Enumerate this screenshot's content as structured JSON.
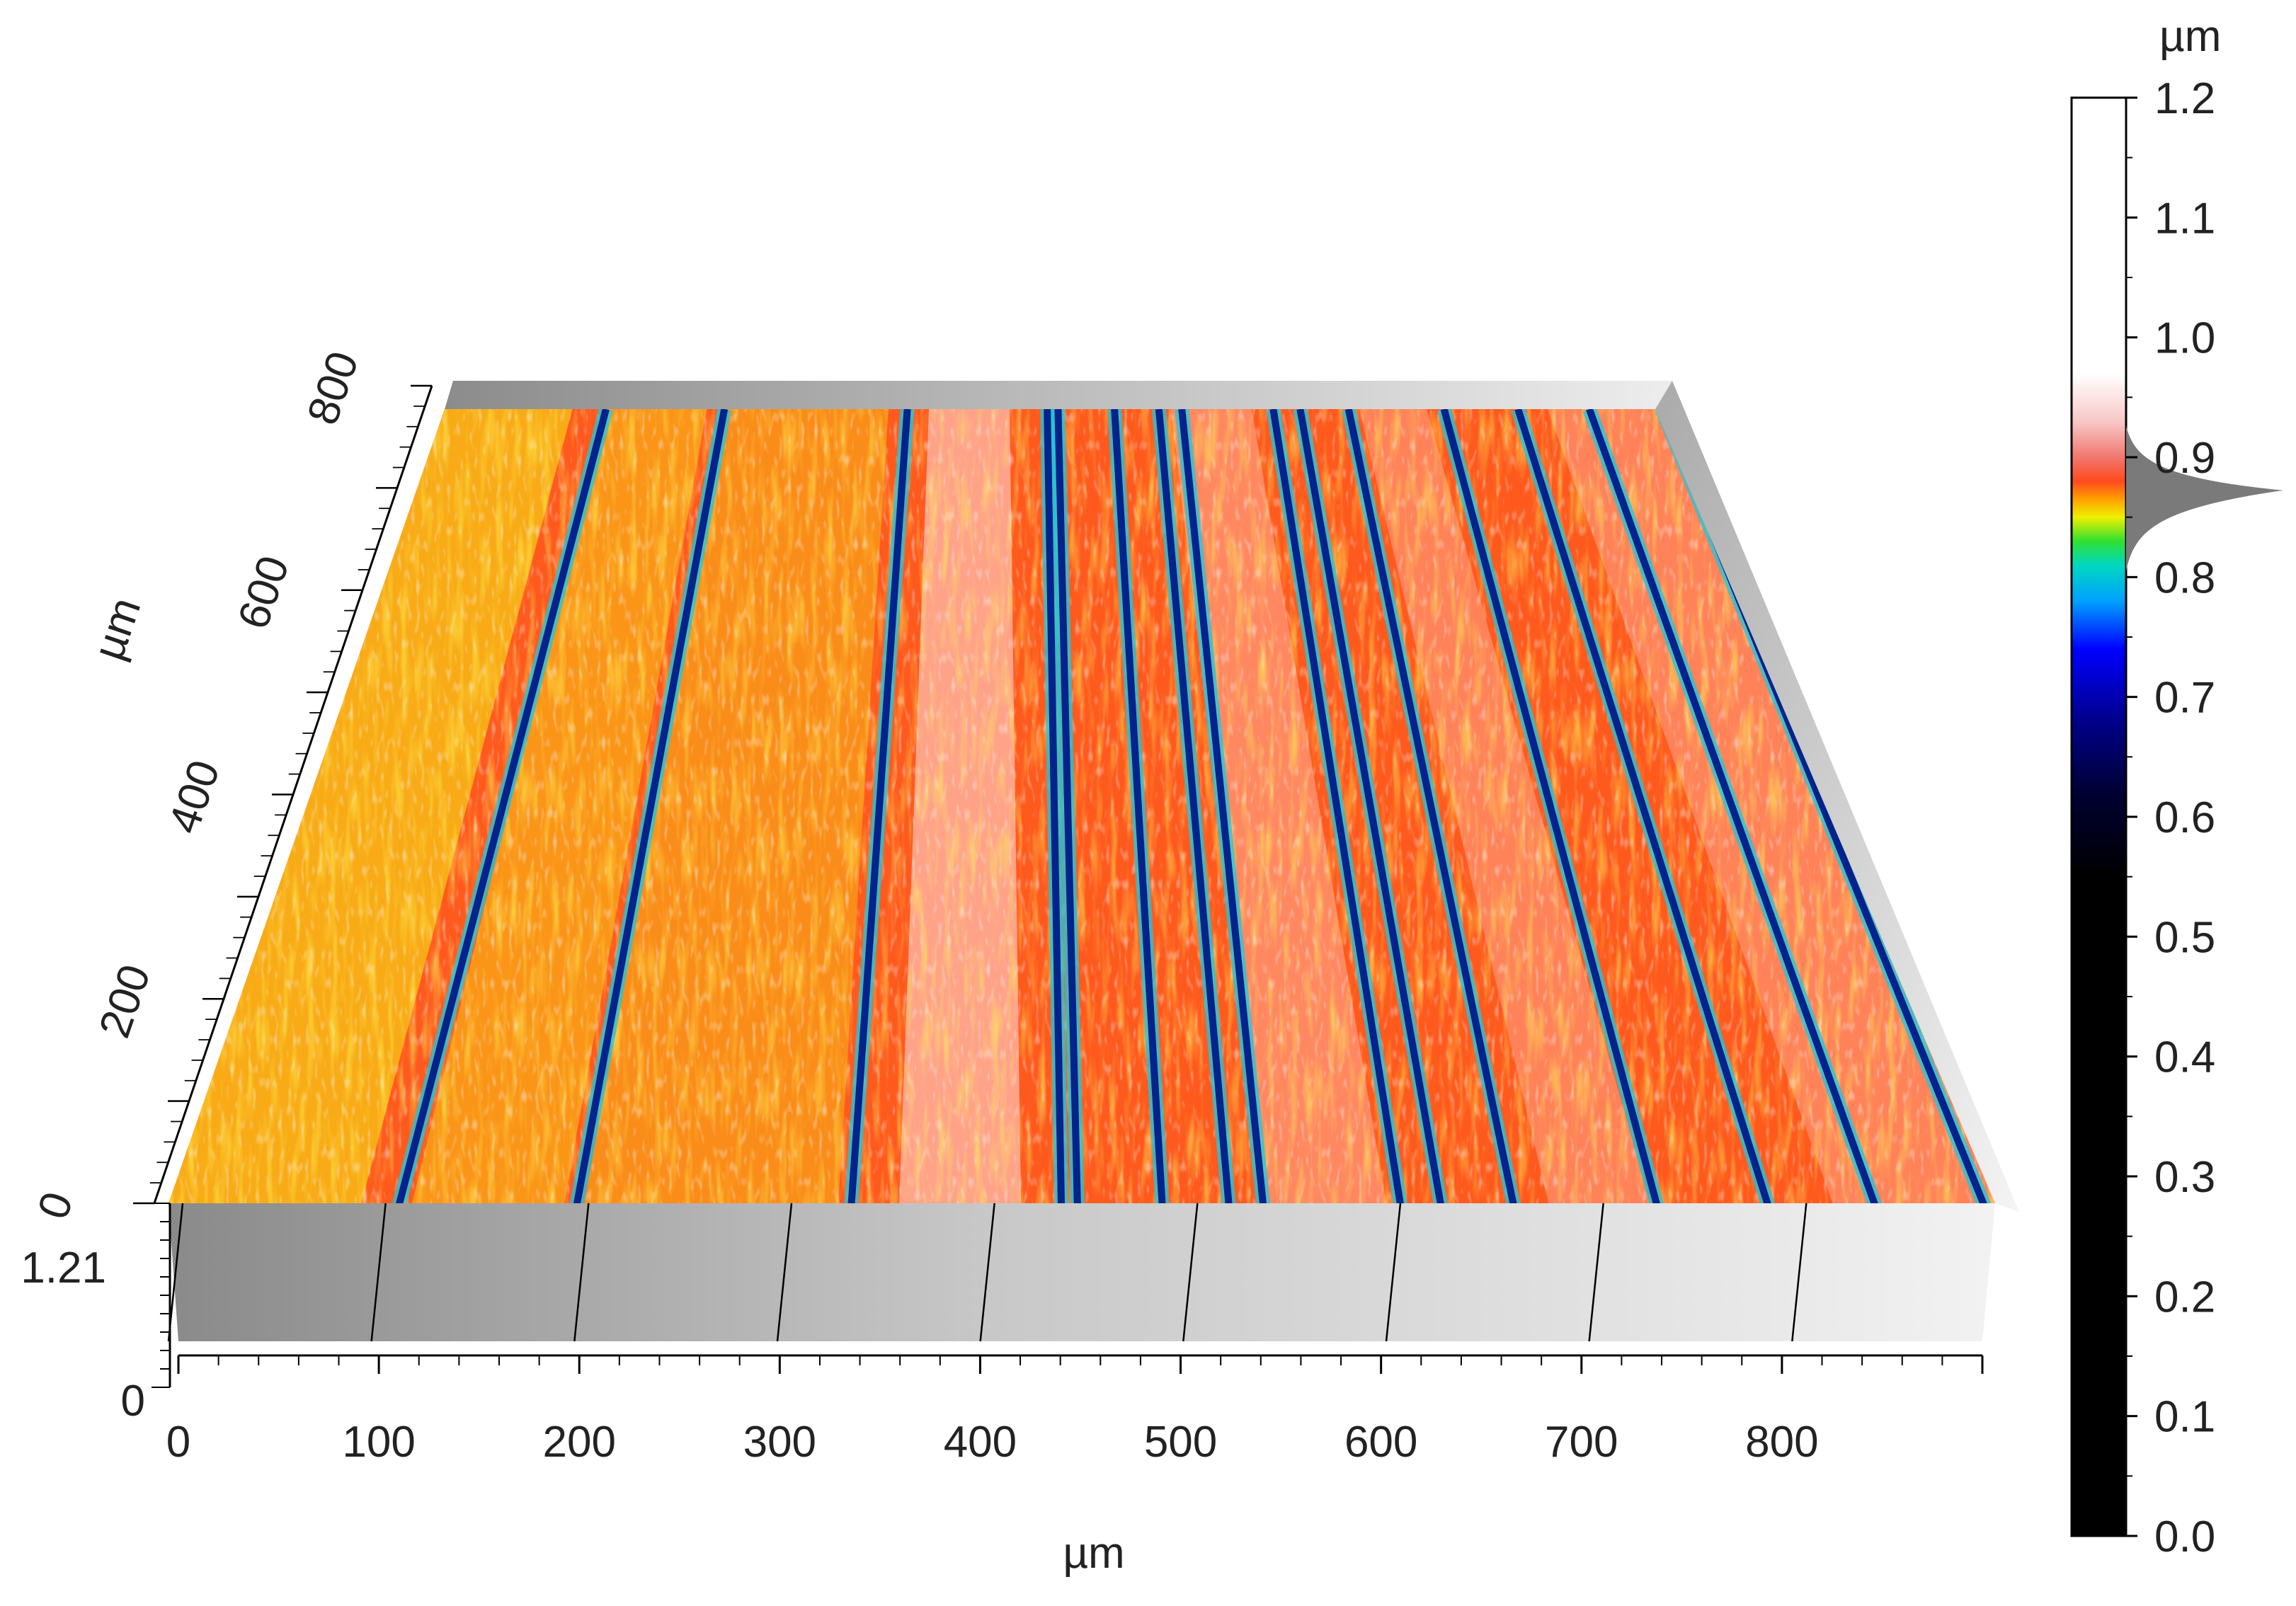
{
  "chart_data": {
    "type": "surface-3d",
    "x_axis": {
      "label": "µm",
      "ticks": [
        0,
        100,
        200,
        300,
        400,
        500,
        600,
        700,
        800
      ],
      "range": [
        0,
        900
      ]
    },
    "y_axis": {
      "label": "µm",
      "ticks": [
        0,
        200,
        400,
        600,
        800
      ],
      "range": [
        0,
        800
      ]
    },
    "z_axis": {
      "ticks": [
        "0",
        "1.21"
      ],
      "range": [
        0,
        1.21
      ]
    },
    "colorbar": {
      "unit": "µm",
      "ticks": [
        "0.0",
        "0.1",
        "0.2",
        "0.3",
        "0.4",
        "0.5",
        "0.6",
        "0.7",
        "0.8",
        "0.9",
        "1.0",
        "1.1",
        "1.2"
      ],
      "range": [
        0,
        1.2
      ],
      "histogram_peak": 0.87,
      "stops": [
        {
          "v": 0.0,
          "c": "#000000"
        },
        {
          "v": 0.55,
          "c": "#000000"
        },
        {
          "v": 0.62,
          "c": "#000033"
        },
        {
          "v": 0.68,
          "c": "#00008b"
        },
        {
          "v": 0.74,
          "c": "#0000ff"
        },
        {
          "v": 0.78,
          "c": "#00a0ff"
        },
        {
          "v": 0.81,
          "c": "#00d8c0"
        },
        {
          "v": 0.83,
          "c": "#30e030"
        },
        {
          "v": 0.85,
          "c": "#f0f000"
        },
        {
          "v": 0.865,
          "c": "#ffa000"
        },
        {
          "v": 0.88,
          "c": "#ff4a1e"
        },
        {
          "v": 0.9,
          "c": "#f0786e"
        },
        {
          "v": 0.93,
          "c": "#f8c8c8"
        },
        {
          "v": 0.97,
          "c": "#ffffff"
        },
        {
          "v": 1.2,
          "c": "#ffffff"
        }
      ]
    },
    "grooves_x": [
      112,
      200,
      336,
      440,
      448,
      490,
      523,
      540,
      608,
      628,
      664,
      735,
      790,
      843,
      897
    ]
  },
  "colors": {
    "base_orange": "#ff5a1e",
    "groove": "#00238c",
    "groove_edge": "#18c8e0",
    "highlight": "#ffe0e0",
    "yellow": "#f2ee10"
  }
}
